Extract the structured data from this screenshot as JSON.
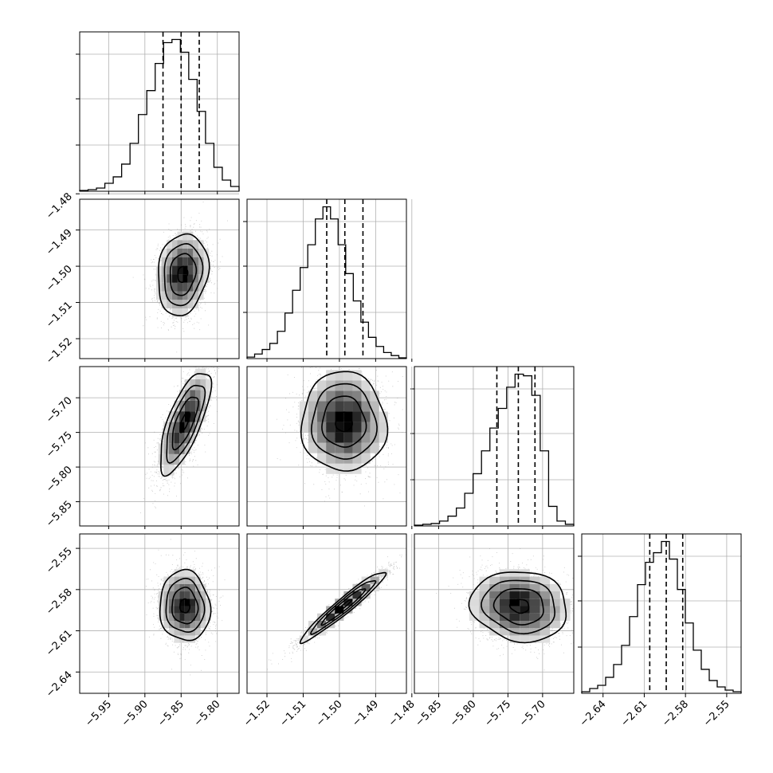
{
  "chart_data": {
    "type": "corner",
    "n_params": 4,
    "params": [
      {
        "range": [
          -5.99,
          -5.77
        ],
        "ticks": [
          -5.95,
          -5.9,
          -5.85,
          -5.8
        ],
        "tick_labels": [
          "−5.95",
          "−5.90",
          "−5.85",
          "−5.80"
        ],
        "quantiles": [
          -5.875,
          -5.85,
          -5.825
        ],
        "hist": [
          0.5,
          1,
          2,
          5,
          9,
          17,
          30,
          48,
          63,
          80,
          93,
          95,
          87,
          70,
          50,
          30,
          15,
          7,
          3
        ]
      },
      {
        "range": [
          -1.5255,
          -1.4815
        ],
        "ticks": [
          -1.52,
          -1.51,
          -1.5,
          -1.49,
          -1.48
        ],
        "tick_labels": [
          "−1.52",
          "−1.51",
          "−1.50",
          "−1.49",
          "−1.48"
        ],
        "quantiles": [
          -1.5035,
          -1.4985,
          -1.4935
        ],
        "hist": [
          1,
          3,
          6,
          10,
          18,
          30,
          45,
          60,
          75,
          92,
          100,
          92,
          75,
          56,
          38,
          24,
          14,
          8,
          4,
          2,
          0.5
        ]
      },
      {
        "range": [
          -5.885,
          -5.655
        ],
        "ticks": [
          -5.85,
          -5.8,
          -5.75,
          -5.7
        ],
        "tick_labels": [
          "−5.85",
          "−5.80",
          "−5.75",
          "−5.70"
        ],
        "quantiles": [
          -5.766,
          -5.735,
          -5.711
        ],
        "hist": [
          0.5,
          1,
          1.5,
          3,
          6,
          11,
          20,
          32,
          46,
          60,
          72,
          85,
          93,
          92,
          80,
          46,
          12,
          3,
          1
        ]
      },
      {
        "range": [
          -2.6555,
          -2.5395
        ],
        "ticks": [
          -2.64,
          -2.61,
          -2.58,
          -2.55
        ],
        "tick_labels": [
          "−2.64",
          "−2.61",
          "−2.58",
          "−2.55"
        ],
        "quantiles": [
          -2.606,
          -2.594,
          -2.582
        ],
        "hist": [
          1,
          3,
          5,
          10,
          18,
          30,
          48,
          68,
          82,
          88,
          95,
          84,
          65,
          44,
          27,
          15,
          8,
          4,
          2,
          1
        ]
      }
    ],
    "pairs": [
      {
        "row": 1,
        "col": 0,
        "cx": -5.848,
        "cy": -1.5022,
        "sx": 0.017,
        "sy": 0.0055,
        "rho": 0.15
      },
      {
        "row": 2,
        "col": 0,
        "cx": -5.845,
        "cy": -5.735,
        "sx": 0.017,
        "sy": 0.036,
        "rho": 0.72
      },
      {
        "row": 2,
        "col": 1,
        "cx": -1.4988,
        "cy": -5.735,
        "sx": 0.0057,
        "sy": 0.035,
        "rho": -0.02
      },
      {
        "row": 3,
        "col": 0,
        "cx": -5.845,
        "cy": -2.592,
        "sx": 0.017,
        "sy": 0.0125,
        "rho": -0.05
      },
      {
        "row": 3,
        "col": 1,
        "cx": -1.4988,
        "cy": -2.592,
        "sx": 0.0057,
        "sy": 0.0125,
        "rho": 0.96
      },
      {
        "row": 3,
        "col": 2,
        "cx": -5.733,
        "cy": -2.592,
        "sx": 0.034,
        "sy": 0.0125,
        "rho": -0.1
      }
    ],
    "grid": true
  }
}
